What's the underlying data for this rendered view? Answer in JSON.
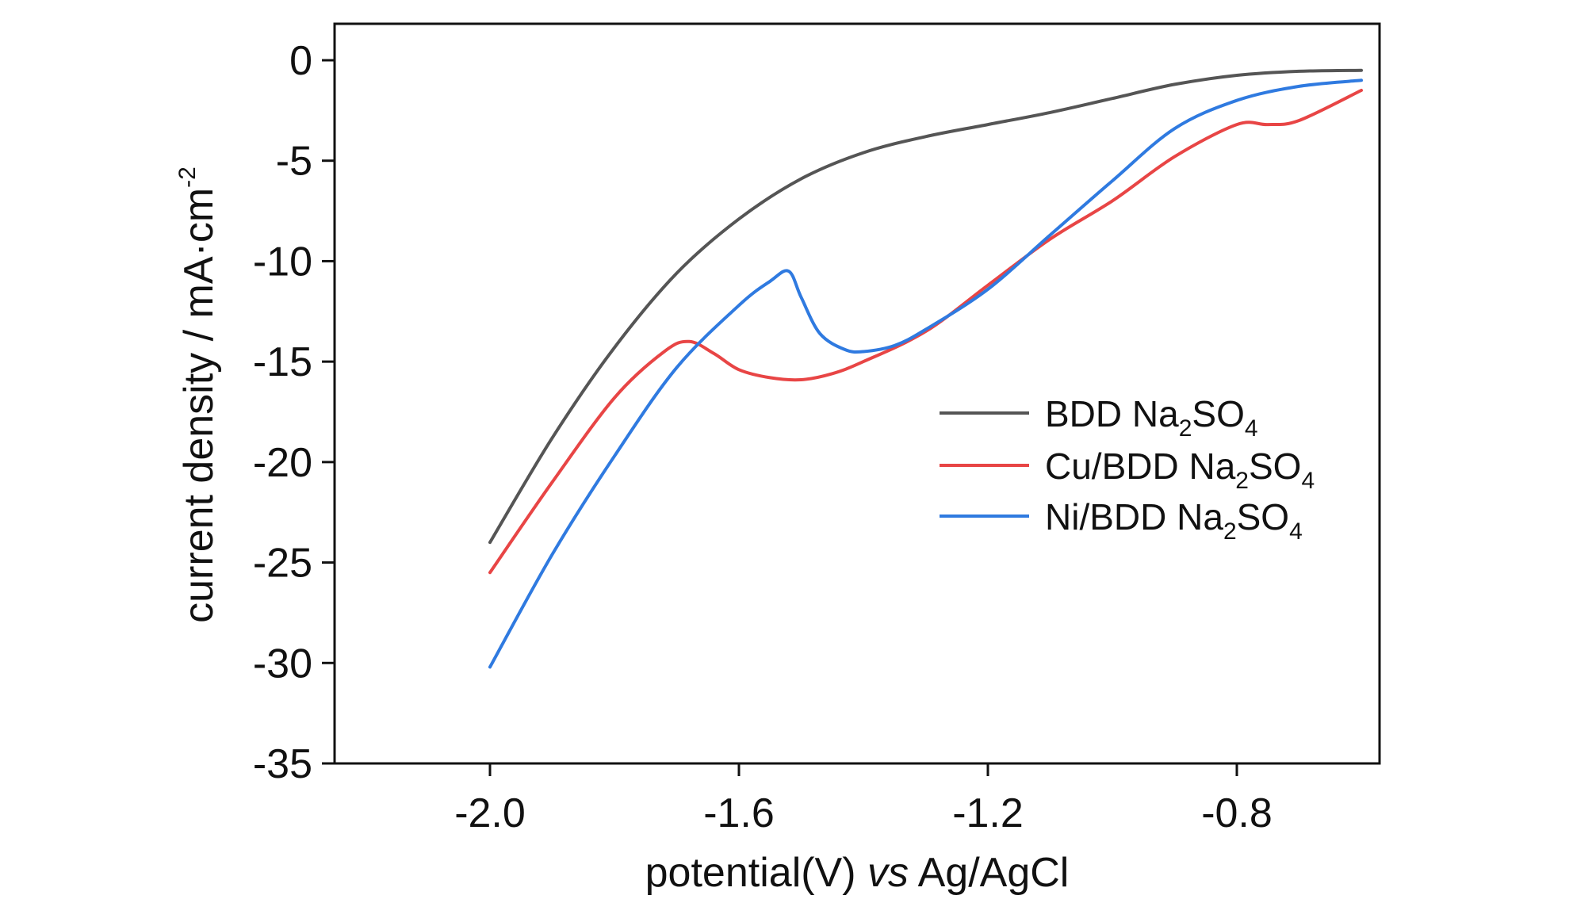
{
  "chart_data": {
    "type": "line",
    "xlabel": {
      "prefix": "potential(V) ",
      "italic": "vs",
      "suffix": " Ag/AgCl"
    },
    "ylabel": {
      "main": "current density / mA·cm",
      "sup": "-2"
    },
    "xlim": [
      -2.25,
      -0.6
    ],
    "ylim": [
      -35,
      2
    ],
    "x_ticks": [
      -2.0,
      -1.6,
      -1.2,
      -0.8
    ],
    "x_tick_labels": [
      "-2.0",
      "-1.6",
      "-1.2",
      "-0.8"
    ],
    "y_ticks": [
      0,
      -5,
      -10,
      -15,
      -20,
      -25,
      -30,
      -35
    ],
    "y_tick_labels": [
      "0",
      "-5",
      "-10",
      "-15",
      "-20",
      "-25",
      "-30",
      "-35"
    ],
    "legend_position": "right-middle",
    "series": [
      {
        "name": "BDD Na2SO4",
        "legend": {
          "t1": "BDD Na",
          "s1": "2",
          "t2": "SO",
          "s2": "4"
        },
        "color": "#555555",
        "x": [
          -2.0,
          -1.9,
          -1.8,
          -1.7,
          -1.6,
          -1.5,
          -1.4,
          -1.3,
          -1.2,
          -1.1,
          -1.0,
          -0.9,
          -0.8,
          -0.7,
          -0.6
        ],
        "y": [
          -24.0,
          -18.8,
          -14.3,
          -10.6,
          -7.9,
          -5.9,
          -4.6,
          -3.8,
          -3.2,
          -2.6,
          -1.9,
          -1.2,
          -0.75,
          -0.55,
          -0.5
        ]
      },
      {
        "name": "Cu/BDD Na2SO4",
        "legend": {
          "t1": "Cu/BDD Na",
          "s1": "2",
          "t2": "SO",
          "s2": "4"
        },
        "color": "#e84545",
        "x": [
          -2.0,
          -1.9,
          -1.8,
          -1.72,
          -1.68,
          -1.64,
          -1.6,
          -1.55,
          -1.5,
          -1.45,
          -1.4,
          -1.3,
          -1.2,
          -1.1,
          -1.0,
          -0.9,
          -0.8,
          -0.75,
          -0.7,
          -0.6
        ],
        "y": [
          -25.5,
          -21.0,
          -16.8,
          -14.5,
          -14.0,
          -14.6,
          -15.4,
          -15.8,
          -15.9,
          -15.6,
          -15.0,
          -13.5,
          -11.2,
          -8.9,
          -7.0,
          -4.8,
          -3.2,
          -3.2,
          -3.0,
          -1.5
        ]
      },
      {
        "name": "Ni/BDD Na2SO4",
        "legend": {
          "t1": "Ni/BDD Na",
          "s1": "2",
          "t2": "SO",
          "s2": "4"
        },
        "color": "#2f7ae0",
        "x": [
          -2.0,
          -1.9,
          -1.8,
          -1.7,
          -1.6,
          -1.55,
          -1.52,
          -1.5,
          -1.47,
          -1.43,
          -1.4,
          -1.35,
          -1.3,
          -1.2,
          -1.1,
          -1.0,
          -0.9,
          -0.8,
          -0.7,
          -0.6
        ],
        "y": [
          -30.2,
          -24.6,
          -19.7,
          -15.3,
          -12.2,
          -11.0,
          -10.5,
          -11.8,
          -13.6,
          -14.4,
          -14.5,
          -14.2,
          -13.4,
          -11.4,
          -8.7,
          -6.0,
          -3.4,
          -2.0,
          -1.3,
          -1.0
        ]
      }
    ]
  }
}
